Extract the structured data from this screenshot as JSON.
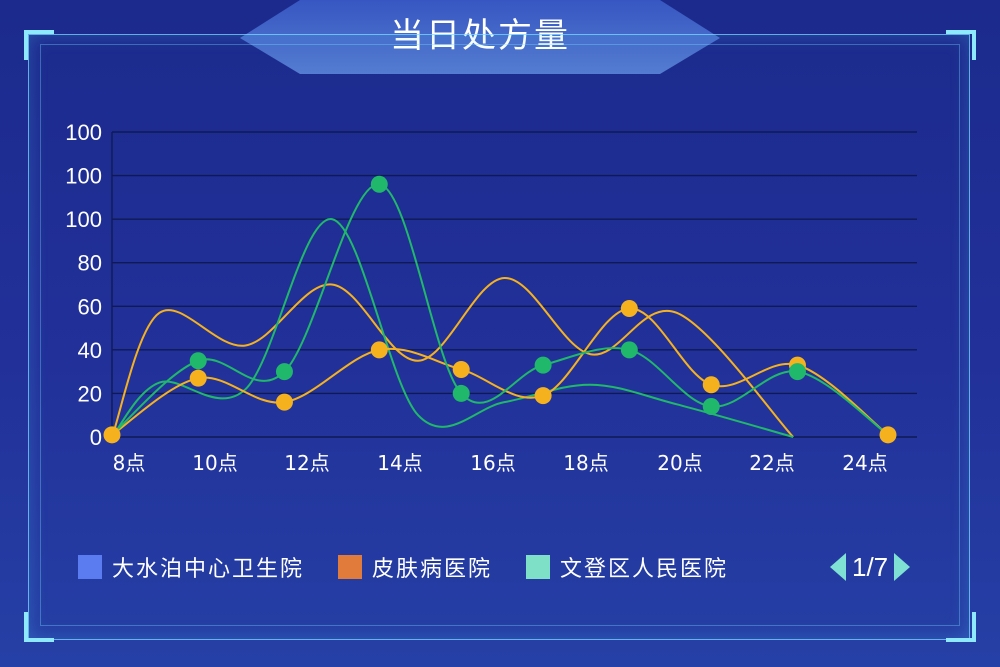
{
  "title": "当日处方量",
  "pager": {
    "text": "1/7"
  },
  "chart_data": {
    "type": "line",
    "smooth": true,
    "grid": true,
    "categories": [
      "8点",
      "10点",
      "12点",
      "14点",
      "16点",
      "18点",
      "20点",
      "22点",
      "24点"
    ],
    "y_tick_labels": [
      "0",
      "20",
      "40",
      "60",
      "80",
      "100",
      "100",
      "100"
    ],
    "ylim": [
      0,
      140
    ],
    "legend_position": "bottom",
    "legend": [
      {
        "name": "大水泊中心卫生院",
        "color": "#5b7bf0"
      },
      {
        "name": "皮肤病医院",
        "color": "#e07b3c"
      },
      {
        "name": "文登区人民医院",
        "color": "#7fe0c8"
      }
    ],
    "lines": [
      {
        "color": "#f5b21e",
        "width": 2,
        "points": [
          [
            0.9,
            0
          ],
          [
            2,
            57
          ],
          [
            4,
            42
          ],
          [
            6,
            70
          ],
          [
            8,
            35
          ],
          [
            10,
            73
          ],
          [
            12,
            38
          ],
          [
            14,
            57
          ],
          [
            16.7,
            0
          ]
        ]
      },
      {
        "color": "#20b86a",
        "width": 2,
        "points": [
          [
            0.9,
            0
          ],
          [
            2,
            25
          ],
          [
            4,
            22
          ],
          [
            6,
            100
          ],
          [
            8,
            10
          ],
          [
            10,
            16
          ],
          [
            12,
            24
          ],
          [
            14,
            15
          ],
          [
            16.7,
            0
          ]
        ]
      },
      {
        "color": "#f5b21e",
        "width": 2,
        "points": [
          [
            0.9,
            1
          ],
          [
            2.9,
            27
          ],
          [
            4.9,
            16
          ],
          [
            7.1,
            40
          ],
          [
            9.0,
            31
          ],
          [
            10.9,
            19
          ],
          [
            12.9,
            59
          ],
          [
            14.8,
            24
          ],
          [
            16.8,
            33
          ],
          [
            18.9,
            1
          ]
        ]
      },
      {
        "color": "#20b86a",
        "width": 2,
        "points": [
          [
            0.9,
            1
          ],
          [
            2.9,
            35
          ],
          [
            4.9,
            30
          ],
          [
            7.1,
            116
          ],
          [
            9.0,
            20
          ],
          [
            10.9,
            33
          ],
          [
            12.9,
            40
          ],
          [
            14.8,
            14
          ],
          [
            16.8,
            30
          ],
          [
            18.9,
            1
          ]
        ]
      }
    ],
    "markers": [
      {
        "color": "#f5b21e",
        "points": [
          [
            0.9,
            1
          ],
          [
            2.9,
            27
          ],
          [
            4.9,
            16
          ],
          [
            7.1,
            40
          ],
          [
            9.0,
            31
          ],
          [
            10.9,
            19
          ],
          [
            12.9,
            59
          ],
          [
            14.8,
            24
          ],
          [
            16.8,
            33
          ],
          [
            18.9,
            1
          ]
        ]
      },
      {
        "color": "#20b86a",
        "points": [
          [
            2.9,
            35
          ],
          [
            4.9,
            30
          ],
          [
            7.1,
            116
          ],
          [
            9.0,
            20
          ],
          [
            10.9,
            33
          ],
          [
            12.9,
            40
          ],
          [
            14.8,
            14
          ],
          [
            16.8,
            30
          ]
        ]
      }
    ]
  }
}
